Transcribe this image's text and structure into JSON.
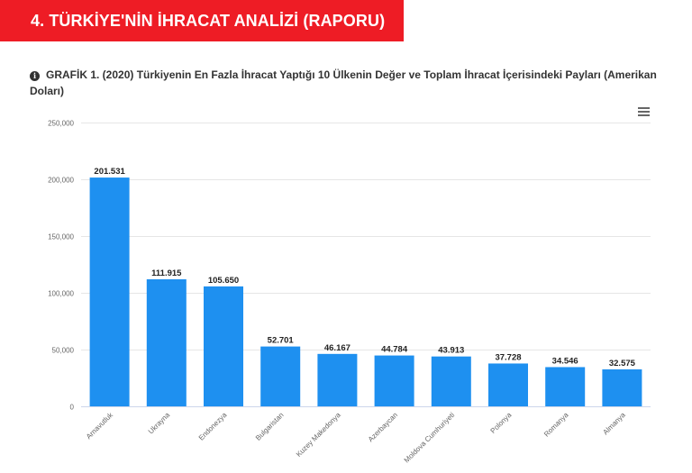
{
  "header": {
    "section_title": "4. TÜRKİYE'NİN İHRACAT ANALİZİ (RAPORU)"
  },
  "chart_caption": {
    "icon": "info-icon",
    "text": "GRAFİK 1. (2020) Türkiyenin En Fazla İhracat Yaptığı 10 Ülkenin Değer ve Toplam İhracat İçerisindeki Payları (Amerikan Doları)"
  },
  "toolbar": {
    "menu_icon": "hamburger-menu-icon"
  },
  "chart_data": {
    "type": "bar",
    "title": "",
    "xlabel": "",
    "ylabel": "",
    "ylim": [
      0,
      250000
    ],
    "yticks": [
      0,
      50000,
      100000,
      150000,
      200000,
      250000
    ],
    "ytick_labels": [
      "0",
      "50,000",
      "100,000",
      "150,000",
      "200,000",
      "250,000"
    ],
    "grid": true,
    "categories": [
      "Arnavutluk",
      "Ukrayna",
      "Endonezya",
      "Bulgaristan",
      "Kuzey Makedonya",
      "Azerbaycan",
      "Moldova Cumhuriyeti",
      "Polonya",
      "Romanya",
      "Almanya"
    ],
    "values": [
      201531,
      111915,
      105650,
      52701,
      46167,
      44784,
      43913,
      37728,
      34546,
      32575
    ],
    "data_labels": [
      "201.531",
      "111.915",
      "105.650",
      "52.701",
      "46.167",
      "44.784",
      "43.913",
      "37.728",
      "34.546",
      "32.575"
    ],
    "bar_color": "#1e90f0"
  }
}
